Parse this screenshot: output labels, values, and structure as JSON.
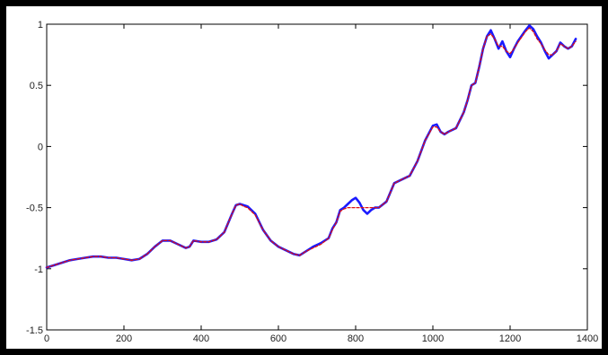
{
  "chart_data": {
    "type": "line",
    "title": "",
    "xlabel": "",
    "ylabel": "",
    "xlim": [
      0,
      1400
    ],
    "ylim": [
      -1.5,
      1
    ],
    "xticks": [
      "0",
      "200",
      "400",
      "600",
      "800",
      "1000",
      "1200",
      "1400"
    ],
    "yticks": [
      "-1.5",
      "-1",
      "-0.5",
      "0",
      "0.5",
      "1"
    ],
    "grid": false,
    "legend": "none",
    "series": [
      {
        "style": "solid",
        "color": "#1a1aff",
        "x": [
          0,
          20,
          40,
          60,
          80,
          100,
          120,
          140,
          160,
          180,
          200,
          220,
          240,
          260,
          280,
          300,
          320,
          340,
          360,
          370,
          380,
          400,
          420,
          440,
          460,
          480,
          490,
          500,
          510,
          520,
          540,
          560,
          580,
          600,
          620,
          640,
          655,
          670,
          690,
          710,
          730,
          740,
          750,
          760,
          770,
          780,
          790,
          800,
          810,
          820,
          830,
          840,
          850,
          860,
          880,
          900,
          920,
          940,
          960,
          980,
          1000,
          1010,
          1020,
          1030,
          1040,
          1060,
          1080,
          1090,
          1100,
          1110,
          1120,
          1130,
          1140,
          1150,
          1160,
          1170,
          1180,
          1190,
          1200,
          1210,
          1220,
          1240,
          1250,
          1260,
          1270,
          1280,
          1290,
          1300,
          1310,
          1320,
          1330,
          1340,
          1350,
          1360,
          1370
        ],
        "y": [
          -0.99,
          -0.97,
          -0.95,
          -0.93,
          -0.92,
          -0.91,
          -0.9,
          -0.9,
          -0.91,
          -0.91,
          -0.92,
          -0.93,
          -0.92,
          -0.88,
          -0.82,
          -0.77,
          -0.77,
          -0.8,
          -0.83,
          -0.82,
          -0.77,
          -0.78,
          -0.78,
          -0.76,
          -0.7,
          -0.55,
          -0.48,
          -0.47,
          -0.48,
          -0.49,
          -0.55,
          -0.68,
          -0.77,
          -0.82,
          -0.85,
          -0.88,
          -0.89,
          -0.86,
          -0.82,
          -0.79,
          -0.75,
          -0.67,
          -0.62,
          -0.52,
          -0.5,
          -0.47,
          -0.44,
          -0.42,
          -0.46,
          -0.52,
          -0.55,
          -0.52,
          -0.5,
          -0.5,
          -0.45,
          -0.3,
          -0.27,
          -0.24,
          -0.12,
          0.05,
          0.17,
          0.18,
          0.12,
          0.1,
          0.12,
          0.15,
          0.28,
          0.38,
          0.5,
          0.52,
          0.65,
          0.8,
          0.9,
          0.95,
          0.88,
          0.8,
          0.86,
          0.78,
          0.73,
          0.8,
          0.86,
          0.95,
          0.99,
          0.96,
          0.9,
          0.85,
          0.78,
          0.72,
          0.75,
          0.78,
          0.85,
          0.82,
          0.8,
          0.82,
          0.88
        ]
      },
      {
        "style": "dashed",
        "color": "#e01010",
        "x": [
          0,
          20,
          40,
          60,
          80,
          100,
          120,
          140,
          160,
          180,
          200,
          220,
          240,
          260,
          280,
          300,
          320,
          340,
          360,
          370,
          380,
          400,
          420,
          440,
          460,
          480,
          490,
          500,
          510,
          520,
          540,
          560,
          580,
          600,
          620,
          640,
          655,
          670,
          690,
          710,
          730,
          740,
          750,
          760,
          770,
          780,
          790,
          800,
          810,
          820,
          830,
          840,
          850,
          860,
          880,
          900,
          920,
          940,
          960,
          980,
          1000,
          1010,
          1020,
          1030,
          1040,
          1060,
          1080,
          1090,
          1100,
          1110,
          1120,
          1130,
          1140,
          1150,
          1160,
          1170,
          1180,
          1190,
          1200,
          1210,
          1220,
          1240,
          1250,
          1260,
          1270,
          1280,
          1290,
          1300,
          1310,
          1320,
          1330,
          1340,
          1350,
          1360,
          1370
        ],
        "y": [
          -0.99,
          -0.97,
          -0.95,
          -0.93,
          -0.92,
          -0.91,
          -0.9,
          -0.9,
          -0.91,
          -0.91,
          -0.92,
          -0.93,
          -0.92,
          -0.88,
          -0.82,
          -0.77,
          -0.77,
          -0.8,
          -0.83,
          -0.82,
          -0.77,
          -0.78,
          -0.78,
          -0.76,
          -0.7,
          -0.55,
          -0.48,
          -0.47,
          -0.49,
          -0.5,
          -0.56,
          -0.68,
          -0.77,
          -0.82,
          -0.85,
          -0.88,
          -0.89,
          -0.86,
          -0.83,
          -0.8,
          -0.75,
          -0.68,
          -0.62,
          -0.53,
          -0.51,
          -0.5,
          -0.5,
          -0.5,
          -0.5,
          -0.5,
          -0.5,
          -0.5,
          -0.5,
          -0.5,
          -0.45,
          -0.3,
          -0.27,
          -0.24,
          -0.12,
          0.05,
          0.16,
          0.16,
          0.12,
          0.1,
          0.12,
          0.15,
          0.28,
          0.38,
          0.5,
          0.52,
          0.65,
          0.8,
          0.9,
          0.92,
          0.88,
          0.82,
          0.82,
          0.78,
          0.76,
          0.8,
          0.85,
          0.94,
          0.97,
          0.94,
          0.88,
          0.84,
          0.79,
          0.75,
          0.75,
          0.78,
          0.84,
          0.82,
          0.8,
          0.82,
          0.86
        ]
      }
    ]
  }
}
